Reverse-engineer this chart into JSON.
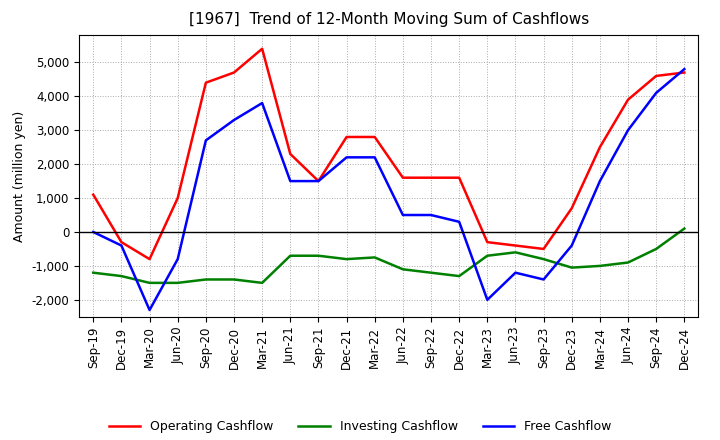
{
  "title": "[1967]  Trend of 12-Month Moving Sum of Cashflows",
  "ylabel": "Amount (million yen)",
  "x_labels": [
    "Sep-19",
    "Dec-19",
    "Mar-20",
    "Jun-20",
    "Sep-20",
    "Dec-20",
    "Mar-21",
    "Jun-21",
    "Sep-21",
    "Dec-21",
    "Mar-22",
    "Jun-22",
    "Sep-22",
    "Dec-22",
    "Mar-23",
    "Jun-23",
    "Sep-23",
    "Dec-23",
    "Mar-24",
    "Jun-24",
    "Sep-24",
    "Dec-24"
  ],
  "operating_cashflow": [
    1100,
    -300,
    -800,
    1000,
    4400,
    4700,
    5400,
    2300,
    1500,
    2800,
    2800,
    1600,
    1600,
    1600,
    -300,
    -400,
    -500,
    700,
    2500,
    3900,
    4600,
    4700
  ],
  "investing_cashflow": [
    -1200,
    -1300,
    -1500,
    -1500,
    -1400,
    -1400,
    -1500,
    -700,
    -700,
    -800,
    -750,
    -1100,
    -1200,
    -1300,
    -700,
    -600,
    -800,
    -1050,
    -1000,
    -900,
    -500,
    100
  ],
  "free_cashflow": [
    0,
    -400,
    -2300,
    -800,
    2700,
    3300,
    3800,
    1500,
    1500,
    2200,
    2200,
    500,
    500,
    300,
    -2000,
    -1200,
    -1400,
    -400,
    1500,
    3000,
    4100,
    4800
  ],
  "operating_color": "#ff0000",
  "investing_color": "#008000",
  "free_color": "#0000ff",
  "ylim": [
    -2500,
    5800
  ],
  "yticks": [
    -2000,
    -1000,
    0,
    1000,
    2000,
    3000,
    4000,
    5000
  ],
  "background_color": "#ffffff",
  "grid_color": "#aaaaaa",
  "title_fontsize": 11,
  "axis_fontsize": 8.5,
  "ylabel_fontsize": 9,
  "legend_fontsize": 9,
  "line_width": 1.8
}
